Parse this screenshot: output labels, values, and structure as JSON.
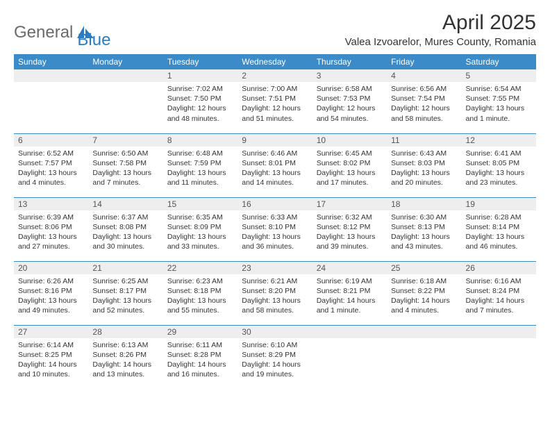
{
  "logo": {
    "text1": "General",
    "text2": "Blue"
  },
  "title": "April 2025",
  "location": "Valea Izvoarelor, Mures County, Romania",
  "colors": {
    "header_bg": "#3b8bc8",
    "header_fg": "#ffffff",
    "daynum_bg": "#eeeeee",
    "cell_border": "#3b8bc8",
    "page_bg": "#ffffff",
    "text": "#333333",
    "logo_gray": "#6a6a6a",
    "logo_blue": "#2e7cc0"
  },
  "day_headers": [
    "Sunday",
    "Monday",
    "Tuesday",
    "Wednesday",
    "Thursday",
    "Friday",
    "Saturday"
  ],
  "weeks": [
    [
      null,
      null,
      {
        "n": "1",
        "sunrise": "7:02 AM",
        "sunset": "7:50 PM",
        "daylight": "12 hours and 48 minutes."
      },
      {
        "n": "2",
        "sunrise": "7:00 AM",
        "sunset": "7:51 PM",
        "daylight": "12 hours and 51 minutes."
      },
      {
        "n": "3",
        "sunrise": "6:58 AM",
        "sunset": "7:53 PM",
        "daylight": "12 hours and 54 minutes."
      },
      {
        "n": "4",
        "sunrise": "6:56 AM",
        "sunset": "7:54 PM",
        "daylight": "12 hours and 58 minutes."
      },
      {
        "n": "5",
        "sunrise": "6:54 AM",
        "sunset": "7:55 PM",
        "daylight": "13 hours and 1 minute."
      }
    ],
    [
      {
        "n": "6",
        "sunrise": "6:52 AM",
        "sunset": "7:57 PM",
        "daylight": "13 hours and 4 minutes."
      },
      {
        "n": "7",
        "sunrise": "6:50 AM",
        "sunset": "7:58 PM",
        "daylight": "13 hours and 7 minutes."
      },
      {
        "n": "8",
        "sunrise": "6:48 AM",
        "sunset": "7:59 PM",
        "daylight": "13 hours and 11 minutes."
      },
      {
        "n": "9",
        "sunrise": "6:46 AM",
        "sunset": "8:01 PM",
        "daylight": "13 hours and 14 minutes."
      },
      {
        "n": "10",
        "sunrise": "6:45 AM",
        "sunset": "8:02 PM",
        "daylight": "13 hours and 17 minutes."
      },
      {
        "n": "11",
        "sunrise": "6:43 AM",
        "sunset": "8:03 PM",
        "daylight": "13 hours and 20 minutes."
      },
      {
        "n": "12",
        "sunrise": "6:41 AM",
        "sunset": "8:05 PM",
        "daylight": "13 hours and 23 minutes."
      }
    ],
    [
      {
        "n": "13",
        "sunrise": "6:39 AM",
        "sunset": "8:06 PM",
        "daylight": "13 hours and 27 minutes."
      },
      {
        "n": "14",
        "sunrise": "6:37 AM",
        "sunset": "8:08 PM",
        "daylight": "13 hours and 30 minutes."
      },
      {
        "n": "15",
        "sunrise": "6:35 AM",
        "sunset": "8:09 PM",
        "daylight": "13 hours and 33 minutes."
      },
      {
        "n": "16",
        "sunrise": "6:33 AM",
        "sunset": "8:10 PM",
        "daylight": "13 hours and 36 minutes."
      },
      {
        "n": "17",
        "sunrise": "6:32 AM",
        "sunset": "8:12 PM",
        "daylight": "13 hours and 39 minutes."
      },
      {
        "n": "18",
        "sunrise": "6:30 AM",
        "sunset": "8:13 PM",
        "daylight": "13 hours and 43 minutes."
      },
      {
        "n": "19",
        "sunrise": "6:28 AM",
        "sunset": "8:14 PM",
        "daylight": "13 hours and 46 minutes."
      }
    ],
    [
      {
        "n": "20",
        "sunrise": "6:26 AM",
        "sunset": "8:16 PM",
        "daylight": "13 hours and 49 minutes."
      },
      {
        "n": "21",
        "sunrise": "6:25 AM",
        "sunset": "8:17 PM",
        "daylight": "13 hours and 52 minutes."
      },
      {
        "n": "22",
        "sunrise": "6:23 AM",
        "sunset": "8:18 PM",
        "daylight": "13 hours and 55 minutes."
      },
      {
        "n": "23",
        "sunrise": "6:21 AM",
        "sunset": "8:20 PM",
        "daylight": "13 hours and 58 minutes."
      },
      {
        "n": "24",
        "sunrise": "6:19 AM",
        "sunset": "8:21 PM",
        "daylight": "14 hours and 1 minute."
      },
      {
        "n": "25",
        "sunrise": "6:18 AM",
        "sunset": "8:22 PM",
        "daylight": "14 hours and 4 minutes."
      },
      {
        "n": "26",
        "sunrise": "6:16 AM",
        "sunset": "8:24 PM",
        "daylight": "14 hours and 7 minutes."
      }
    ],
    [
      {
        "n": "27",
        "sunrise": "6:14 AM",
        "sunset": "8:25 PM",
        "daylight": "14 hours and 10 minutes."
      },
      {
        "n": "28",
        "sunrise": "6:13 AM",
        "sunset": "8:26 PM",
        "daylight": "14 hours and 13 minutes."
      },
      {
        "n": "29",
        "sunrise": "6:11 AM",
        "sunset": "8:28 PM",
        "daylight": "14 hours and 16 minutes."
      },
      {
        "n": "30",
        "sunrise": "6:10 AM",
        "sunset": "8:29 PM",
        "daylight": "14 hours and 19 minutes."
      },
      null,
      null,
      null
    ]
  ],
  "labels": {
    "sunrise": "Sunrise:",
    "sunset": "Sunset:",
    "daylight": "Daylight:"
  }
}
